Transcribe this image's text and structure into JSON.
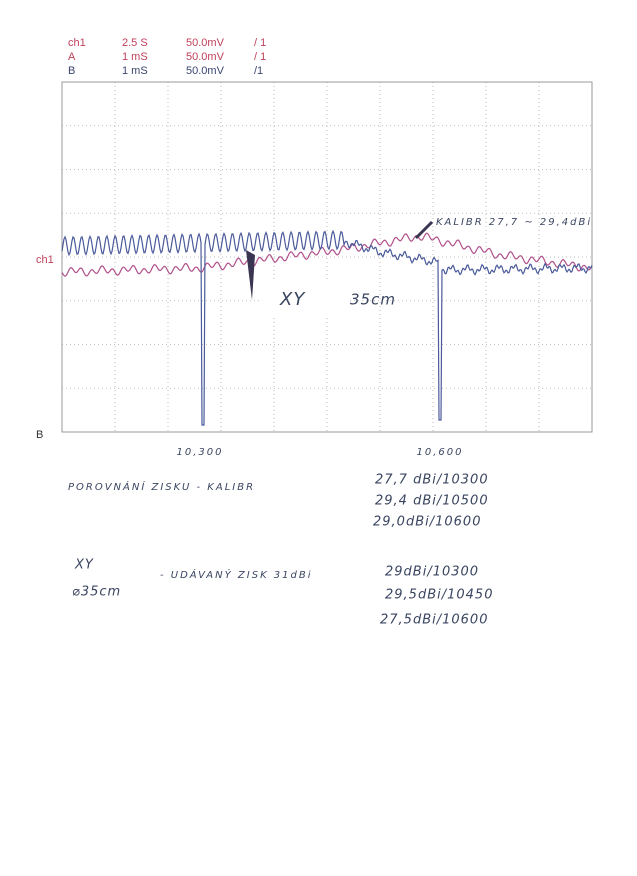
{
  "header": {
    "rows": [
      [
        "ch1",
        "2.5 S",
        "50.0mV",
        "/ 1"
      ],
      [
        "A",
        "1 mS",
        "50.0mV",
        "/ 1"
      ],
      [
        "B",
        "1 mS",
        "50.0mV",
        "/1"
      ]
    ]
  },
  "scope": {
    "marker_label": "ch1",
    "trace_label": "B",
    "x_labels": [
      "10,300",
      "10,600"
    ],
    "annotations": [
      "KALIBR 27,7 ~ 29,4dBi",
      "XY",
      "35cm"
    ]
  },
  "notes": {
    "comparison": {
      "title": "POROVNÁNÍ ZISKU - KALIBR",
      "rows": [
        "27,7 dBi/10300",
        "29,4 dBi/10500",
        "29,0dBi/10600"
      ]
    },
    "xy": {
      "label": "XY",
      "size": "⌀35cm",
      "title": "- UDÁVANÝ ZISK 31dBi",
      "rows": [
        "29dBi/10300",
        "29,5dBi/10450",
        "27,5dBi/10600"
      ]
    }
  }
}
